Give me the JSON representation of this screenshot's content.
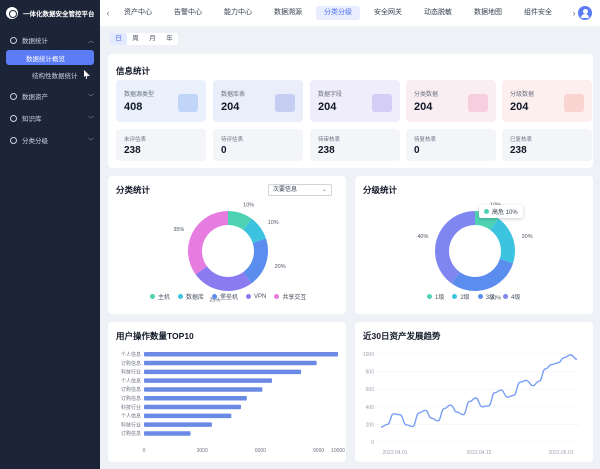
{
  "app": {
    "title": "一体化数据安全管控平台"
  },
  "sidebar": {
    "groups": [
      {
        "label": "数据统计",
        "expanded": true
      },
      {
        "label": "数据资产",
        "expanded": false
      },
      {
        "label": "知识库",
        "expanded": false
      },
      {
        "label": "分类分级",
        "expanded": false
      }
    ],
    "subitems": [
      {
        "label": "数据统计概览",
        "active": true
      },
      {
        "label": "结构性数据统计",
        "active": false
      }
    ]
  },
  "topnav": {
    "tabs": [
      "资产中心",
      "告警中心",
      "能力中心",
      "数据溯源",
      "分类分级",
      "安全网关",
      "动态脱敏",
      "数据地图",
      "组件安全"
    ],
    "active": "分类分级"
  },
  "period": {
    "options": [
      "日",
      "周",
      "月",
      "年"
    ],
    "active": "日"
  },
  "info": {
    "title": "信息统计",
    "tiles": [
      {
        "label": "数据源类型",
        "value": "408",
        "bg": "#eaf1fd",
        "accent": "#8fb3f2"
      },
      {
        "label": "数据库表",
        "value": "204",
        "bg": "#eaeefb",
        "accent": "#9aa6e6"
      },
      {
        "label": "数据字段",
        "value": "204",
        "bg": "#efecfb",
        "accent": "#b4a8ee"
      },
      {
        "label": "分类数据",
        "value": "204",
        "bg": "#fbeef3",
        "accent": "#f2a7c3"
      },
      {
        "label": "分级数据",
        "value": "204",
        "bg": "#fdefee",
        "accent": "#f5b3ad"
      }
    ],
    "minis": [
      {
        "label": "未评估表",
        "value": "238"
      },
      {
        "label": "待评估表",
        "value": "0"
      },
      {
        "label": "待审核表",
        "value": "238"
      },
      {
        "label": "待复核表",
        "value": "0"
      },
      {
        "label": "已复核表",
        "value": "238"
      }
    ]
  },
  "classify": {
    "title": "分类统计",
    "select": "次要信息",
    "slices": [
      {
        "name": "主机",
        "pct": 10,
        "label": "10%",
        "color": "#4fd1b3"
      },
      {
        "name": "数据库",
        "pct": 10,
        "label": "10%",
        "color": "#3cc3e0"
      },
      {
        "name": "堡垒机",
        "pct": 20,
        "label": "20%",
        "color": "#5b8def"
      },
      {
        "name": "VPN",
        "pct": 25,
        "label": "25%",
        "color": "#8a7bf0"
      },
      {
        "name": "共享交互",
        "pct": 35,
        "label": "35%",
        "color": "#e67be0"
      }
    ]
  },
  "grade": {
    "title": "分级统计",
    "tooltip": "高危 10%",
    "slices": [
      {
        "name": "1级",
        "pct": 10,
        "label": "10%",
        "color": "#4fd1b3"
      },
      {
        "name": "2级",
        "pct": 20,
        "label": "20%",
        "color": "#3cc3e0"
      },
      {
        "name": "3级",
        "pct": 30,
        "label": "30%",
        "color": "#5b8def"
      },
      {
        "name": "4级",
        "pct": 40,
        "label": "40%",
        "color": "#7f86ef"
      }
    ]
  },
  "top10": {
    "title": "用户操作数量TOP10",
    "categories": [
      "个人信息",
      "订购信息",
      "科技行业",
      "个人信息",
      "订购信息",
      "订购信息",
      "科技行业",
      "个人信息",
      "科技行业",
      "订购信息"
    ],
    "values": [
      10000,
      8900,
      8100,
      6600,
      6100,
      5300,
      5000,
      4500,
      3500,
      2400
    ],
    "ticks": [
      "0",
      "3000",
      "6000",
      "9000",
      "10000"
    ],
    "tick_values": [
      0,
      3000,
      6000,
      9000,
      10000
    ],
    "color": "#6b8ae6"
  },
  "trend": {
    "title": "近30日资产发展趋势",
    "yticks": [
      "1000",
      "800",
      "600",
      "400",
      "200",
      "0"
    ],
    "ytick_values": [
      1000,
      800,
      600,
      400,
      200,
      0
    ],
    "xticks": [
      "2022.04.01",
      "2022.04.15",
      "2022.05.01"
    ],
    "values": [
      170,
      200,
      320,
      310,
      195,
      175,
      330,
      360,
      270,
      240,
      380,
      420,
      340,
      310,
      460,
      500,
      400,
      410,
      560,
      590,
      510,
      530,
      680,
      700,
      640,
      690,
      830,
      880,
      900,
      960,
      990,
      940
    ],
    "color": "#7aa0f5"
  }
}
